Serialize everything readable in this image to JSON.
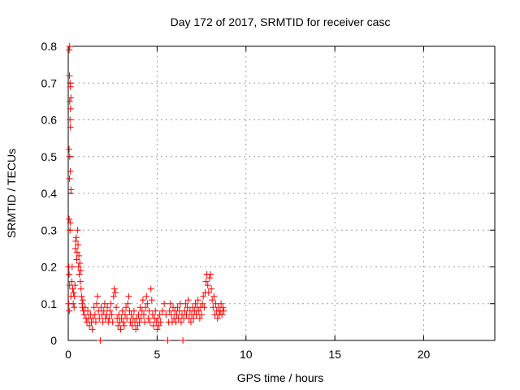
{
  "chart_data": {
    "type": "scatter",
    "title": "Day 172 of 2017, SRMTID for receiver casc",
    "xlabel": "GPS time / hours",
    "ylabel": "SRMTID / TECUs",
    "xlim": [
      0,
      24
    ],
    "ylim": [
      0,
      0.8
    ],
    "xticks": [
      0,
      5,
      10,
      15,
      20
    ],
    "xtick_labels": [
      "0",
      "5",
      "10",
      "15",
      "20"
    ],
    "yticks": [
      0,
      0.1,
      0.2,
      0.3,
      0.4,
      0.5,
      0.6,
      0.7,
      0.8
    ],
    "ytick_labels": [
      "0",
      "0.1",
      "0.2",
      "0.3",
      "0.4",
      "0.5",
      "0.6",
      "0.7",
      "0.8"
    ],
    "grid": true,
    "marker": "+",
    "color": "#ff0000",
    "series": [
      {
        "name": "SRMTID",
        "points": [
          [
            0.05,
            0.79
          ],
          [
            0.08,
            0.8
          ],
          [
            0.07,
            0.72
          ],
          [
            0.1,
            0.7
          ],
          [
            0.12,
            0.69
          ],
          [
            0.08,
            0.65
          ],
          [
            0.15,
            0.66
          ],
          [
            0.13,
            0.63
          ],
          [
            0.1,
            0.6
          ],
          [
            0.12,
            0.58
          ],
          [
            0.05,
            0.52
          ],
          [
            0.08,
            0.5
          ],
          [
            0.12,
            0.46
          ],
          [
            0.07,
            0.44
          ],
          [
            0.15,
            0.41
          ],
          [
            0.05,
            0.33
          ],
          [
            0.12,
            0.32
          ],
          [
            0.1,
            0.3
          ],
          [
            0.03,
            0.2
          ],
          [
            0.05,
            0.18
          ],
          [
            0.08,
            0.15
          ],
          [
            0.02,
            0.1
          ],
          [
            0.06,
            0.08
          ],
          [
            0.15,
            0.12
          ],
          [
            0.2,
            0.16
          ],
          [
            0.22,
            0.2
          ],
          [
            0.25,
            0.14
          ],
          [
            0.3,
            0.13
          ],
          [
            0.28,
            0.1
          ],
          [
            0.33,
            0.09
          ],
          [
            0.35,
            0.12
          ],
          [
            0.38,
            0.15
          ],
          [
            0.4,
            0.25
          ],
          [
            0.42,
            0.27
          ],
          [
            0.45,
            0.28
          ],
          [
            0.48,
            0.22
          ],
          [
            0.5,
            0.24
          ],
          [
            0.52,
            0.3
          ],
          [
            0.55,
            0.26
          ],
          [
            0.58,
            0.2
          ],
          [
            0.6,
            0.23
          ],
          [
            0.62,
            0.18
          ],
          [
            0.65,
            0.21
          ],
          [
            0.68,
            0.16
          ],
          [
            0.7,
            0.19
          ],
          [
            0.72,
            0.14
          ],
          [
            0.75,
            0.12
          ],
          [
            0.78,
            0.1
          ],
          [
            0.8,
            0.09
          ],
          [
            0.82,
            0.11
          ],
          [
            0.85,
            0.08
          ],
          [
            0.9,
            0.07
          ],
          [
            0.95,
            0.09
          ],
          [
            1.0,
            0.06
          ],
          [
            1.05,
            0.05
          ],
          [
            1.1,
            0.08
          ],
          [
            1.15,
            0.06
          ],
          [
            1.2,
            0.04
          ],
          [
            1.25,
            0.07
          ],
          [
            1.3,
            0.05
          ],
          [
            1.35,
            0.03
          ],
          [
            1.4,
            0.06
          ],
          [
            1.45,
            0.09
          ],
          [
            1.5,
            0.07
          ],
          [
            1.55,
            0.05
          ],
          [
            1.6,
            0.1
          ],
          [
            1.65,
            0.12
          ],
          [
            1.7,
            0.08
          ],
          [
            1.75,
            0.06
          ],
          [
            1.8,
            0.0
          ],
          [
            1.85,
            0.09
          ],
          [
            1.9,
            0.07
          ],
          [
            1.95,
            0.05
          ],
          [
            2.0,
            0.08
          ],
          [
            2.05,
            0.1
          ],
          [
            2.1,
            0.06
          ],
          [
            2.15,
            0.07
          ],
          [
            2.2,
            0.09
          ],
          [
            2.25,
            0.05
          ],
          [
            2.3,
            0.06
          ],
          [
            2.35,
            0.08
          ],
          [
            2.4,
            0.1
          ],
          [
            2.45,
            0.07
          ],
          [
            2.5,
            0.05
          ],
          [
            2.55,
            0.12
          ],
          [
            2.6,
            0.14
          ],
          [
            2.65,
            0.13
          ],
          [
            2.7,
            0.09
          ],
          [
            2.75,
            0.06
          ],
          [
            2.8,
            0.04
          ],
          [
            2.85,
            0.07
          ],
          [
            2.9,
            0.05
          ],
          [
            2.95,
            0.03
          ],
          [
            3.0,
            0.06
          ],
          [
            3.05,
            0.08
          ],
          [
            3.1,
            0.05
          ],
          [
            3.15,
            0.04
          ],
          [
            3.2,
            0.07
          ],
          [
            3.25,
            0.09
          ],
          [
            3.3,
            0.06
          ],
          [
            3.35,
            0.1
          ],
          [
            3.4,
            0.12
          ],
          [
            3.45,
            0.08
          ],
          [
            3.5,
            0.05
          ],
          [
            3.55,
            0.07
          ],
          [
            3.6,
            0.04
          ],
          [
            3.65,
            0.06
          ],
          [
            3.7,
            0.08
          ],
          [
            3.75,
            0.05
          ],
          [
            3.8,
            0.03
          ],
          [
            3.85,
            0.06
          ],
          [
            3.9,
            0.04
          ],
          [
            3.95,
            0.07
          ],
          [
            4.0,
            0.05
          ],
          [
            4.05,
            0.09
          ],
          [
            4.1,
            0.06
          ],
          [
            4.15,
            0.08
          ],
          [
            4.2,
            0.11
          ],
          [
            4.25,
            0.07
          ],
          [
            4.3,
            0.05
          ],
          [
            4.35,
            0.09
          ],
          [
            4.4,
            0.12
          ],
          [
            4.45,
            0.1
          ],
          [
            4.5,
            0.06
          ],
          [
            4.55,
            0.08
          ],
          [
            4.6,
            0.05
          ],
          [
            4.65,
            0.14
          ],
          [
            4.7,
            0.11
          ],
          [
            4.75,
            0.07
          ],
          [
            4.8,
            0.04
          ],
          [
            4.85,
            0.06
          ],
          [
            4.9,
            0.08
          ],
          [
            4.95,
            0.05
          ],
          [
            5.0,
            0.03
          ],
          [
            5.05,
            0.06
          ],
          [
            5.1,
            0.04
          ],
          [
            5.15,
            0.07
          ],
          [
            5.2,
            0.05
          ],
          [
            5.3,
            0.08
          ],
          [
            5.4,
            0.1
          ],
          [
            5.5,
            0.07
          ],
          [
            5.6,
            0.0
          ],
          [
            5.65,
            0.05
          ],
          [
            5.7,
            0.08
          ],
          [
            5.75,
            0.1
          ],
          [
            5.8,
            0.07
          ],
          [
            5.85,
            0.05
          ],
          [
            5.9,
            0.09
          ],
          [
            5.95,
            0.06
          ],
          [
            6.0,
            0.08
          ],
          [
            6.05,
            0.05
          ],
          [
            6.1,
            0.07
          ],
          [
            6.15,
            0.09
          ],
          [
            6.2,
            0.06
          ],
          [
            6.25,
            0.08
          ],
          [
            6.3,
            0.1
          ],
          [
            6.35,
            0.05
          ],
          [
            6.4,
            0.07
          ],
          [
            6.45,
            0.0
          ],
          [
            6.5,
            0.06
          ],
          [
            6.55,
            0.08
          ],
          [
            6.6,
            0.1
          ],
          [
            6.65,
            0.07
          ],
          [
            6.7,
            0.09
          ],
          [
            6.75,
            0.11
          ],
          [
            6.8,
            0.06
          ],
          [
            6.85,
            0.08
          ],
          [
            6.9,
            0.05
          ],
          [
            6.95,
            0.07
          ],
          [
            7.0,
            0.09
          ],
          [
            7.05,
            0.06
          ],
          [
            7.1,
            0.08
          ],
          [
            7.15,
            0.1
          ],
          [
            7.2,
            0.07
          ],
          [
            7.25,
            0.09
          ],
          [
            7.3,
            0.11
          ],
          [
            7.35,
            0.08
          ],
          [
            7.4,
            0.06
          ],
          [
            7.45,
            0.09
          ],
          [
            7.5,
            0.07
          ],
          [
            7.55,
            0.1
          ],
          [
            7.6,
            0.12
          ],
          [
            7.65,
            0.09
          ],
          [
            7.7,
            0.13
          ],
          [
            7.75,
            0.16
          ],
          [
            7.8,
            0.18
          ],
          [
            7.85,
            0.15
          ],
          [
            7.9,
            0.13
          ],
          [
            7.95,
            0.17
          ],
          [
            8.0,
            0.18
          ],
          [
            8.05,
            0.14
          ],
          [
            8.1,
            0.11
          ],
          [
            8.15,
            0.09
          ],
          [
            8.2,
            0.12
          ],
          [
            8.25,
            0.07
          ],
          [
            8.3,
            0.1
          ],
          [
            8.35,
            0.08
          ],
          [
            8.4,
            0.06
          ],
          [
            8.45,
            0.09
          ],
          [
            8.5,
            0.07
          ],
          [
            8.55,
            0.08
          ],
          [
            8.6,
            0.1
          ],
          [
            8.65,
            0.07
          ],
          [
            8.7,
            0.09
          ],
          [
            8.75,
            0.08
          ]
        ]
      }
    ]
  }
}
